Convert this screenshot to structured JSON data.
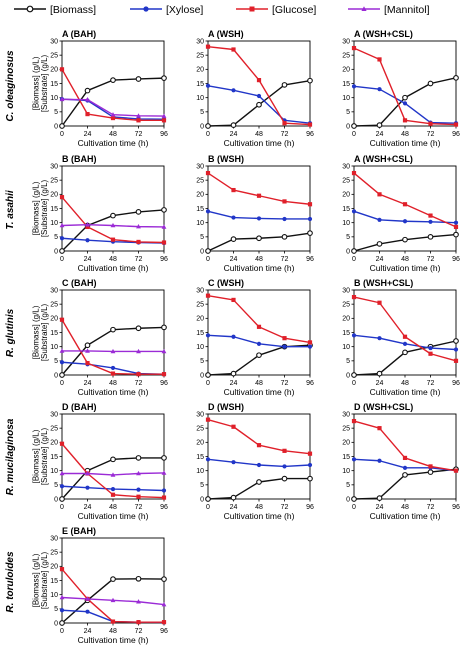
{
  "colors": {
    "Biomass": "#111111",
    "Xylose": "#2136c8",
    "Glucose": "#e0202a",
    "Mannitol": "#9b2bd6"
  },
  "legend": [
    {
      "key": "Biomass",
      "label": "[Biomass]"
    },
    {
      "key": "Xylose",
      "label": "[Xylose]"
    },
    {
      "key": "Glucose",
      "label": "[Glucose]"
    },
    {
      "key": "Mannitol",
      "label": "[Mannitol]"
    }
  ],
  "axis_text": {
    "xlabel": "Cultivation time (h)",
    "ylabel_line1": "[Biomass] (g/L)",
    "ylabel_line2": "[Substrate] (g/L)"
  },
  "species": [
    "C. oleaginosus",
    "T. asahii",
    "R. glutinis",
    "R. mucilaginosa",
    "R. toruloides"
  ],
  "chart_data": [
    {
      "type": "line",
      "title": "A (BAH)",
      "row": 0,
      "col": 0,
      "xlabel": "Cultivation time (h)",
      "ylabel": "[Biomass] (g/L) [Substrate] (g/L)",
      "x": [
        0,
        24,
        48,
        72,
        96
      ],
      "xlim": [
        0,
        96
      ],
      "ylim": [
        0,
        30
      ],
      "xticks": [
        0,
        24,
        48,
        72,
        96
      ],
      "yticks": [
        0,
        5,
        10,
        15,
        20,
        25,
        30
      ],
      "series": [
        {
          "name": "Biomass",
          "values": [
            0,
            12.5,
            16.2,
            16.6,
            16.9
          ]
        },
        {
          "name": "Xylose",
          "values": [
            9.5,
            9.0,
            3.2,
            2.5,
            2.4
          ]
        },
        {
          "name": "Glucose",
          "values": [
            20,
            4.2,
            2.8,
            2.0,
            2.0
          ]
        },
        {
          "name": "Mannitol",
          "values": [
            9.4,
            9.3,
            4.0,
            3.6,
            3.5
          ]
        }
      ]
    },
    {
      "type": "line",
      "title": "A (WSH)",
      "row": 0,
      "col": 1,
      "xlabel": "Cultivation time (h)",
      "x": [
        0,
        24,
        48,
        72,
        96
      ],
      "xlim": [
        0,
        96
      ],
      "ylim": [
        0,
        30
      ],
      "xticks": [
        0,
        24,
        48,
        72,
        96
      ],
      "yticks": [
        0,
        5,
        10,
        15,
        20,
        25,
        30
      ],
      "series": [
        {
          "name": "Biomass",
          "values": [
            0,
            0.3,
            7.5,
            14.5,
            16.0
          ]
        },
        {
          "name": "Xylose",
          "values": [
            14.2,
            12.6,
            10.6,
            2.0,
            1.0
          ]
        },
        {
          "name": "Glucose",
          "values": [
            28.0,
            27.0,
            16.2,
            1.0,
            0.5
          ]
        }
      ]
    },
    {
      "type": "line",
      "title": "A (WSH+CSL)",
      "row": 0,
      "col": 2,
      "xlabel": "Cultivation time (h)",
      "x": [
        0,
        24,
        48,
        72,
        96
      ],
      "xlim": [
        0,
        96
      ],
      "ylim": [
        0,
        30
      ],
      "xticks": [
        0,
        24,
        48,
        72,
        96
      ],
      "yticks": [
        0,
        5,
        10,
        15,
        20,
        25,
        30
      ],
      "series": [
        {
          "name": "Biomass",
          "values": [
            0,
            0.3,
            10.0,
            15.0,
            17.0
          ]
        },
        {
          "name": "Xylose",
          "values": [
            14.0,
            13.0,
            8.0,
            1.2,
            1.0
          ]
        },
        {
          "name": "Glucose",
          "values": [
            27.5,
            23.5,
            2.0,
            0.8,
            0.5
          ]
        }
      ]
    },
    {
      "type": "line",
      "title": "B (BAH)",
      "row": 1,
      "col": 0,
      "xlabel": "Cultivation time (h)",
      "ylabel": "[Biomass] (g/L) [Substrate] (g/L)",
      "x": [
        0,
        24,
        48,
        72,
        96
      ],
      "xlim": [
        0,
        96
      ],
      "ylim": [
        0,
        30
      ],
      "xticks": [
        0,
        24,
        48,
        72,
        96
      ],
      "yticks": [
        0,
        5,
        10,
        15,
        20,
        25,
        30
      ],
      "series": [
        {
          "name": "Biomass",
          "values": [
            0,
            9.0,
            12.5,
            13.8,
            14.5
          ]
        },
        {
          "name": "Xylose",
          "values": [
            4.5,
            3.8,
            3.3,
            3.0,
            2.8
          ]
        },
        {
          "name": "Glucose",
          "values": [
            19.0,
            8.5,
            4.0,
            3.2,
            3.0
          ]
        },
        {
          "name": "Mannitol",
          "values": [
            9.0,
            9.3,
            9.0,
            8.6,
            8.5
          ]
        }
      ]
    },
    {
      "type": "line",
      "title": "B (WSH)",
      "row": 1,
      "col": 1,
      "xlabel": "Cultivation time (h)",
      "x": [
        0,
        24,
        48,
        72,
        96
      ],
      "xlim": [
        0,
        96
      ],
      "ylim": [
        0,
        30
      ],
      "xticks": [
        0,
        24,
        48,
        72,
        96
      ],
      "yticks": [
        0,
        5,
        10,
        15,
        20,
        25,
        30
      ],
      "series": [
        {
          "name": "Biomass",
          "values": [
            0,
            4.2,
            4.5,
            5.0,
            6.3
          ]
        },
        {
          "name": "Xylose",
          "values": [
            14.0,
            11.8,
            11.5,
            11.3,
            11.3
          ]
        },
        {
          "name": "Glucose",
          "values": [
            27.5,
            21.5,
            19.5,
            17.5,
            16.5
          ]
        }
      ]
    },
    {
      "type": "line",
      "title": "A (WSH+CSL)",
      "row": 1,
      "col": 2,
      "xlabel": "Cultivation time (h)",
      "x": [
        0,
        24,
        48,
        72,
        96
      ],
      "xlim": [
        0,
        96
      ],
      "ylim": [
        0,
        30
      ],
      "xticks": [
        0,
        24,
        48,
        72,
        96
      ],
      "yticks": [
        0,
        5,
        10,
        15,
        20,
        25,
        30
      ],
      "series": [
        {
          "name": "Biomass",
          "values": [
            0,
            2.5,
            4.0,
            5.0,
            5.8
          ]
        },
        {
          "name": "Xylose",
          "values": [
            14.0,
            11.0,
            10.5,
            10.3,
            10.0
          ]
        },
        {
          "name": "Glucose",
          "values": [
            27.5,
            20.0,
            16.5,
            12.5,
            8.5
          ]
        }
      ]
    },
    {
      "type": "line",
      "title": "C (BAH)",
      "row": 2,
      "col": 0,
      "xlabel": "Cultivation time (h)",
      "ylabel": "[Biomass] (g/L) [Substrate] (g/L)",
      "x": [
        0,
        24,
        48,
        72,
        96
      ],
      "xlim": [
        0,
        96
      ],
      "ylim": [
        0,
        30
      ],
      "xticks": [
        0,
        24,
        48,
        72,
        96
      ],
      "yticks": [
        0,
        5,
        10,
        15,
        20,
        25,
        30
      ],
      "series": [
        {
          "name": "Biomass",
          "values": [
            0,
            10.5,
            16.0,
            16.5,
            16.8
          ]
        },
        {
          "name": "Xylose",
          "values": [
            4.5,
            3.8,
            2.5,
            0.5,
            0.3
          ]
        },
        {
          "name": "Glucose",
          "values": [
            19.5,
            4.2,
            0.5,
            0.3,
            0.3
          ]
        },
        {
          "name": "Mannitol",
          "values": [
            8.5,
            8.5,
            8.3,
            8.3,
            8.3
          ]
        }
      ]
    },
    {
      "type": "line",
      "title": "C (WSH)",
      "row": 2,
      "col": 1,
      "xlabel": "Cultivation time (h)",
      "x": [
        0,
        24,
        48,
        72,
        96
      ],
      "xlim": [
        0,
        96
      ],
      "ylim": [
        0,
        30
      ],
      "xticks": [
        0,
        24,
        48,
        72,
        96
      ],
      "yticks": [
        0,
        5,
        10,
        15,
        20,
        25,
        30
      ],
      "series": [
        {
          "name": "Biomass",
          "values": [
            0,
            0.5,
            7.0,
            10.0,
            10.5
          ]
        },
        {
          "name": "Xylose",
          "values": [
            14.0,
            13.5,
            11.0,
            10.0,
            10.0
          ]
        },
        {
          "name": "Glucose",
          "values": [
            28.0,
            26.5,
            17.0,
            13.0,
            11.5
          ]
        }
      ]
    },
    {
      "type": "line",
      "title": "B (WSH+CSL)",
      "row": 2,
      "col": 2,
      "xlabel": "Cultivation time (h)",
      "x": [
        0,
        24,
        48,
        72,
        96
      ],
      "xlim": [
        0,
        96
      ],
      "ylim": [
        0,
        30
      ],
      "xticks": [
        0,
        24,
        48,
        72,
        96
      ],
      "yticks": [
        0,
        5,
        10,
        15,
        20,
        25,
        30
      ],
      "series": [
        {
          "name": "Biomass",
          "values": [
            0,
            0.5,
            8.0,
            10.0,
            12.0
          ]
        },
        {
          "name": "Xylose",
          "values": [
            14.0,
            13.0,
            11.0,
            9.5,
            9.0
          ]
        },
        {
          "name": "Glucose",
          "values": [
            27.5,
            25.5,
            13.5,
            7.5,
            5.0
          ]
        }
      ]
    },
    {
      "type": "line",
      "title": "D (BAH)",
      "row": 3,
      "col": 0,
      "xlabel": "Cultivation time (h)",
      "ylabel": "[Biomass] (g/L) [Substrate] (g/L)",
      "x": [
        0,
        24,
        48,
        72,
        96
      ],
      "xlim": [
        0,
        96
      ],
      "ylim": [
        0,
        30
      ],
      "xticks": [
        0,
        24,
        48,
        72,
        96
      ],
      "yticks": [
        0,
        5,
        10,
        15,
        20,
        25,
        30
      ],
      "series": [
        {
          "name": "Biomass",
          "values": [
            0,
            10.0,
            14.0,
            14.5,
            14.5
          ]
        },
        {
          "name": "Xylose",
          "values": [
            4.5,
            4.0,
            3.5,
            3.3,
            3.0
          ]
        },
        {
          "name": "Glucose",
          "values": [
            19.5,
            9.0,
            1.5,
            0.8,
            0.5
          ]
        },
        {
          "name": "Mannitol",
          "values": [
            9.0,
            9.0,
            8.5,
            9.0,
            9.2
          ]
        }
      ]
    },
    {
      "type": "line",
      "title": "D (WSH)",
      "row": 3,
      "col": 1,
      "xlabel": "Cultivation time (h)",
      "x": [
        0,
        24,
        48,
        72,
        96
      ],
      "xlim": [
        0,
        96
      ],
      "ylim": [
        0,
        30
      ],
      "xticks": [
        0,
        24,
        48,
        72,
        96
      ],
      "yticks": [
        0,
        5,
        10,
        15,
        20,
        25,
        30
      ],
      "series": [
        {
          "name": "Biomass",
          "values": [
            0,
            0.5,
            6.0,
            7.2,
            7.2
          ]
        },
        {
          "name": "Xylose",
          "values": [
            14.0,
            13.0,
            12.0,
            11.5,
            12.0
          ]
        },
        {
          "name": "Glucose",
          "values": [
            28.0,
            25.5,
            19.0,
            17.0,
            16.0
          ]
        }
      ]
    },
    {
      "type": "line",
      "title": "D (WSH+CSL)",
      "row": 3,
      "col": 2,
      "xlabel": "Cultivation time (h)",
      "x": [
        0,
        24,
        48,
        72,
        96
      ],
      "xlim": [
        0,
        96
      ],
      "ylim": [
        0,
        30
      ],
      "xticks": [
        0,
        24,
        48,
        72,
        96
      ],
      "yticks": [
        0,
        5,
        10,
        15,
        20,
        25,
        30
      ],
      "series": [
        {
          "name": "Biomass",
          "values": [
            0,
            0.3,
            8.5,
            9.5,
            10.5
          ]
        },
        {
          "name": "Xylose",
          "values": [
            14.0,
            13.5,
            11.0,
            11.0,
            10.0
          ]
        },
        {
          "name": "Glucose",
          "values": [
            27.5,
            25.0,
            14.5,
            11.5,
            10.0
          ]
        }
      ]
    },
    {
      "type": "line",
      "title": "E (BAH)",
      "row": 4,
      "col": 0,
      "xlabel": "Cultivation time (h)",
      "ylabel": "[Biomass] (g/L) [Substrate] (g/L)",
      "x": [
        0,
        24,
        48,
        72,
        96
      ],
      "xlim": [
        0,
        96
      ],
      "ylim": [
        0,
        30
      ],
      "xticks": [
        0,
        24,
        48,
        72,
        96
      ],
      "yticks": [
        0,
        5,
        10,
        15,
        20,
        25,
        30
      ],
      "series": [
        {
          "name": "Biomass",
          "values": [
            0,
            8.0,
            15.5,
            15.6,
            15.5
          ]
        },
        {
          "name": "Xylose",
          "values": [
            4.5,
            4.0,
            0.5,
            0.3,
            0.2
          ]
        },
        {
          "name": "Glucose",
          "values": [
            19.0,
            8.5,
            0.5,
            0.3,
            0.3
          ]
        },
        {
          "name": "Mannitol",
          "values": [
            9.0,
            8.5,
            8.0,
            7.5,
            6.5
          ]
        }
      ]
    }
  ]
}
